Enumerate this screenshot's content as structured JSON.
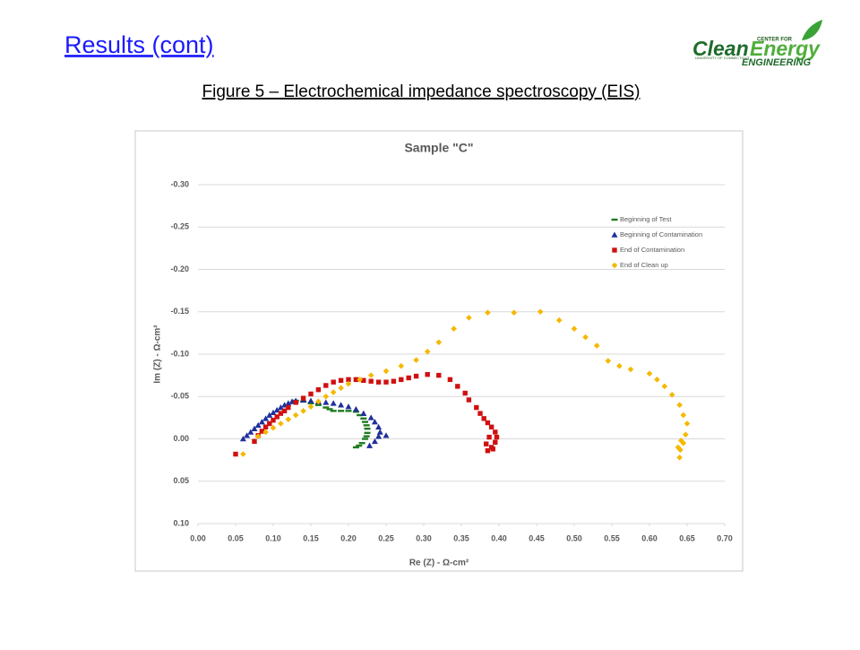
{
  "header": {
    "title": "Results (cont)",
    "caption": "Figure 5 – Electrochemical impedance spectroscopy (EIS)"
  },
  "logo": {
    "top": "CENTER FOR",
    "main_1": "Clean",
    "main_2": "Energy",
    "sub": "UNIVERSITY OF CONNECTICUT",
    "bottom": "ENGINEERING"
  },
  "chart_data": {
    "type": "scatter",
    "title": "Sample \"C\"",
    "x_label": "Re (Z)  -  Ω-cm²",
    "y_label": "Im (Z)  -  Ω-cm²",
    "xlim": [
      0,
      0.7
    ],
    "xticks": [
      {
        "value": 0,
        "label": "0.00"
      },
      {
        "value": 0.05,
        "label": "0.05"
      },
      {
        "value": 0.1,
        "label": "0.10"
      },
      {
        "value": 0.15,
        "label": "0.15"
      },
      {
        "value": 0.2,
        "label": "0.20"
      },
      {
        "value": 0.25,
        "label": "0.25"
      },
      {
        "value": 0.3,
        "label": "0.30"
      },
      {
        "value": 0.35,
        "label": "0.35"
      },
      {
        "value": 0.4,
        "label": "0.40"
      },
      {
        "value": 0.45,
        "label": "0.45"
      },
      {
        "value": 0.5,
        "label": "0.50"
      },
      {
        "value": 0.55,
        "label": "0.55"
      },
      {
        "value": 0.6,
        "label": "0.60"
      },
      {
        "value": 0.65,
        "label": "0.65"
      },
      {
        "value": 0.7,
        "label": "0.70"
      }
    ],
    "ylim": [
      0.1,
      -0.3
    ],
    "yticks": [
      {
        "value": -0.3,
        "label": "-0.30"
      },
      {
        "value": -0.25,
        "label": "-0.25"
      },
      {
        "value": -0.2,
        "label": "-0.20"
      },
      {
        "value": -0.15,
        "label": "-0.15"
      },
      {
        "value": -0.1,
        "label": "-0.10"
      },
      {
        "value": -0.05,
        "label": "-0.05"
      },
      {
        "value": 0,
        "label": "0.00"
      },
      {
        "value": 0.05,
        "label": "0.05"
      },
      {
        "value": 0.1,
        "label": "0.10"
      }
    ],
    "grid": true,
    "legend": "upper-right",
    "series": [
      {
        "name": "Beginning of Test",
        "color": "#1e7b1e",
        "marker": "dash",
        "x": [
          0.13,
          0.14,
          0.15,
          0.16,
          0.17,
          0.175,
          0.18,
          0.19,
          0.2,
          0.21,
          0.215,
          0.22,
          0.222,
          0.224,
          0.225,
          0.225,
          0.224,
          0.222,
          0.218,
          0.214,
          0.21
        ],
        "values": [
          -0.045,
          -0.044,
          -0.042,
          -0.04,
          -0.037,
          -0.035,
          -0.033,
          -0.033,
          -0.033,
          -0.032,
          -0.028,
          -0.024,
          -0.02,
          -0.016,
          -0.012,
          -0.007,
          -0.003,
          0,
          0.005,
          0.008,
          0.01
        ]
      },
      {
        "name": "Beginning of Contamination",
        "color": "#1f2f9c",
        "marker": "triangle",
        "x": [
          0.06,
          0.065,
          0.07,
          0.075,
          0.08,
          0.085,
          0.09,
          0.095,
          0.1,
          0.105,
          0.11,
          0.115,
          0.12,
          0.125,
          0.13,
          0.14,
          0.15,
          0.16,
          0.17,
          0.18,
          0.19,
          0.2,
          0.21,
          0.22,
          0.23,
          0.235,
          0.24,
          0.242,
          0.24,
          0.235,
          0.228,
          0.25
        ],
        "values": [
          0,
          -0.004,
          -0.008,
          -0.012,
          -0.016,
          -0.02,
          -0.024,
          -0.028,
          -0.031,
          -0.034,
          -0.037,
          -0.04,
          -0.042,
          -0.044,
          -0.045,
          -0.046,
          -0.045,
          -0.044,
          -0.043,
          -0.042,
          -0.04,
          -0.038,
          -0.035,
          -0.03,
          -0.025,
          -0.02,
          -0.014,
          -0.008,
          -0.003,
          0.003,
          0.008,
          -0.004
        ]
      },
      {
        "name": "End of Contamination",
        "color": "#d01010",
        "marker": "square",
        "x": [
          0.05,
          0.075,
          0.08,
          0.085,
          0.09,
          0.095,
          0.1,
          0.105,
          0.11,
          0.115,
          0.12,
          0.13,
          0.14,
          0.15,
          0.16,
          0.17,
          0.18,
          0.19,
          0.2,
          0.21,
          0.22,
          0.23,
          0.24,
          0.25,
          0.26,
          0.27,
          0.28,
          0.29,
          0.305,
          0.32,
          0.335,
          0.345,
          0.355,
          0.36,
          0.37,
          0.375,
          0.38,
          0.385,
          0.39,
          0.395,
          0.397,
          0.395,
          0.39,
          0.385,
          0.383,
          0.387,
          0.392
        ],
        "values": [
          0.018,
          0.003,
          -0.004,
          -0.009,
          -0.014,
          -0.018,
          -0.022,
          -0.026,
          -0.03,
          -0.033,
          -0.037,
          -0.043,
          -0.048,
          -0.053,
          -0.058,
          -0.063,
          -0.067,
          -0.069,
          -0.07,
          -0.07,
          -0.069,
          -0.068,
          -0.067,
          -0.067,
          -0.068,
          -0.07,
          -0.072,
          -0.074,
          -0.076,
          -0.075,
          -0.07,
          -0.062,
          -0.054,
          -0.046,
          -0.037,
          -0.03,
          -0.024,
          -0.019,
          -0.014,
          -0.008,
          -0.002,
          0.004,
          0.01,
          0.014,
          0.006,
          -0.002,
          0.012
        ]
      },
      {
        "name": "End of Clean up",
        "color": "#f5b800",
        "marker": "diamond",
        "x": [
          0.06,
          0.08,
          0.09,
          0.1,
          0.11,
          0.12,
          0.13,
          0.14,
          0.15,
          0.16,
          0.17,
          0.18,
          0.19,
          0.2,
          0.215,
          0.23,
          0.25,
          0.27,
          0.29,
          0.305,
          0.32,
          0.34,
          0.36,
          0.385,
          0.42,
          0.455,
          0.48,
          0.5,
          0.515,
          0.53,
          0.545,
          0.56,
          0.575,
          0.6,
          0.61,
          0.62,
          0.63,
          0.64,
          0.645,
          0.65,
          0.648,
          0.645,
          0.641,
          0.64,
          0.638,
          0.642
        ],
        "values": [
          0.018,
          -0.003,
          -0.008,
          -0.013,
          -0.018,
          -0.023,
          -0.028,
          -0.033,
          -0.038,
          -0.044,
          -0.05,
          -0.055,
          -0.06,
          -0.065,
          -0.07,
          -0.075,
          -0.08,
          -0.086,
          -0.093,
          -0.103,
          -0.114,
          -0.13,
          -0.143,
          -0.149,
          -0.149,
          -0.15,
          -0.14,
          -0.13,
          -0.12,
          -0.11,
          -0.092,
          -0.086,
          -0.082,
          -0.077,
          -0.07,
          -0.062,
          -0.052,
          -0.04,
          -0.028,
          -0.018,
          -0.005,
          0.005,
          0.013,
          0.022,
          0.01,
          0.002
        ]
      }
    ]
  }
}
